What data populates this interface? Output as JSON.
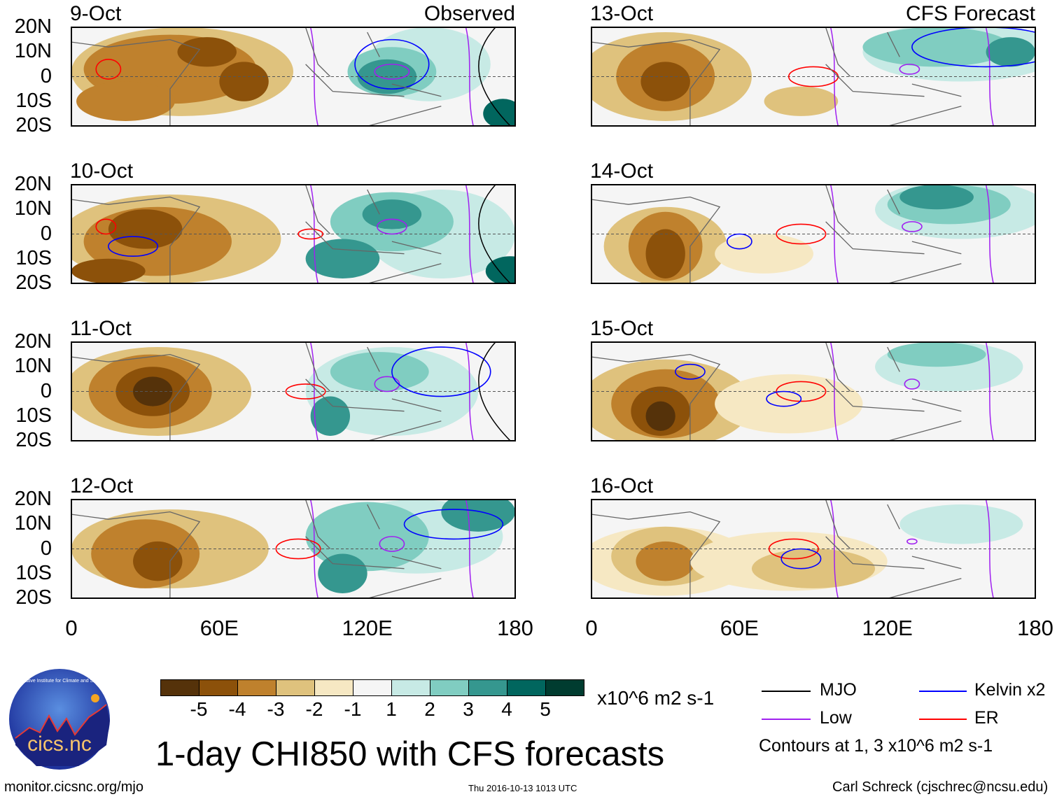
{
  "panels": [
    {
      "date": "9-Oct",
      "header": "Observed"
    },
    {
      "date": "10-Oct"
    },
    {
      "date": "11-Oct"
    },
    {
      "date": "12-Oct"
    },
    {
      "date": "13-Oct",
      "header": "CFS Forecast"
    },
    {
      "date": "14-Oct"
    },
    {
      "date": "15-Oct"
    },
    {
      "date": "16-Oct"
    }
  ],
  "lat_labels": [
    "20N",
    "10N",
    "0",
    "10S",
    "20S"
  ],
  "lon_labels": [
    "0",
    "60E",
    "120E",
    "180"
  ],
  "colorbar": {
    "labels": [
      "-5",
      "-4",
      "-3",
      "-2",
      "-1",
      "1",
      "2",
      "3",
      "4",
      "5"
    ],
    "colors": [
      "#55320a",
      "#8c510a",
      "#bf812d",
      "#dfc27d",
      "#f6e8c3",
      "#f5f5f5",
      "#c7eae5",
      "#80cdc1",
      "#35978f",
      "#01665e",
      "#003c30"
    ],
    "units": "x10^6 m2 s-1"
  },
  "legend": {
    "items": [
      {
        "label": "MJO",
        "color": "#000000"
      },
      {
        "label": "Kelvin x2",
        "color": "#0000ff"
      },
      {
        "label": "Low",
        "color": "#a020f0"
      },
      {
        "label": "ER",
        "color": "#ff0000"
      }
    ],
    "note": "Contours at 1, 3 x10^6 m2 s-1"
  },
  "title": "1-day CHI850 with CFS forecasts",
  "logo_text": "cics.nc",
  "logo_ring_text": "Cooperative Institute for Climate and Satellites",
  "footer": {
    "url": "monitor.cicsnc.org/mjo",
    "timestamp": "Thu 2016-10-13 1013 UTC",
    "credit": "Carl Schreck (cjschrec@ncsu.edu)"
  }
}
